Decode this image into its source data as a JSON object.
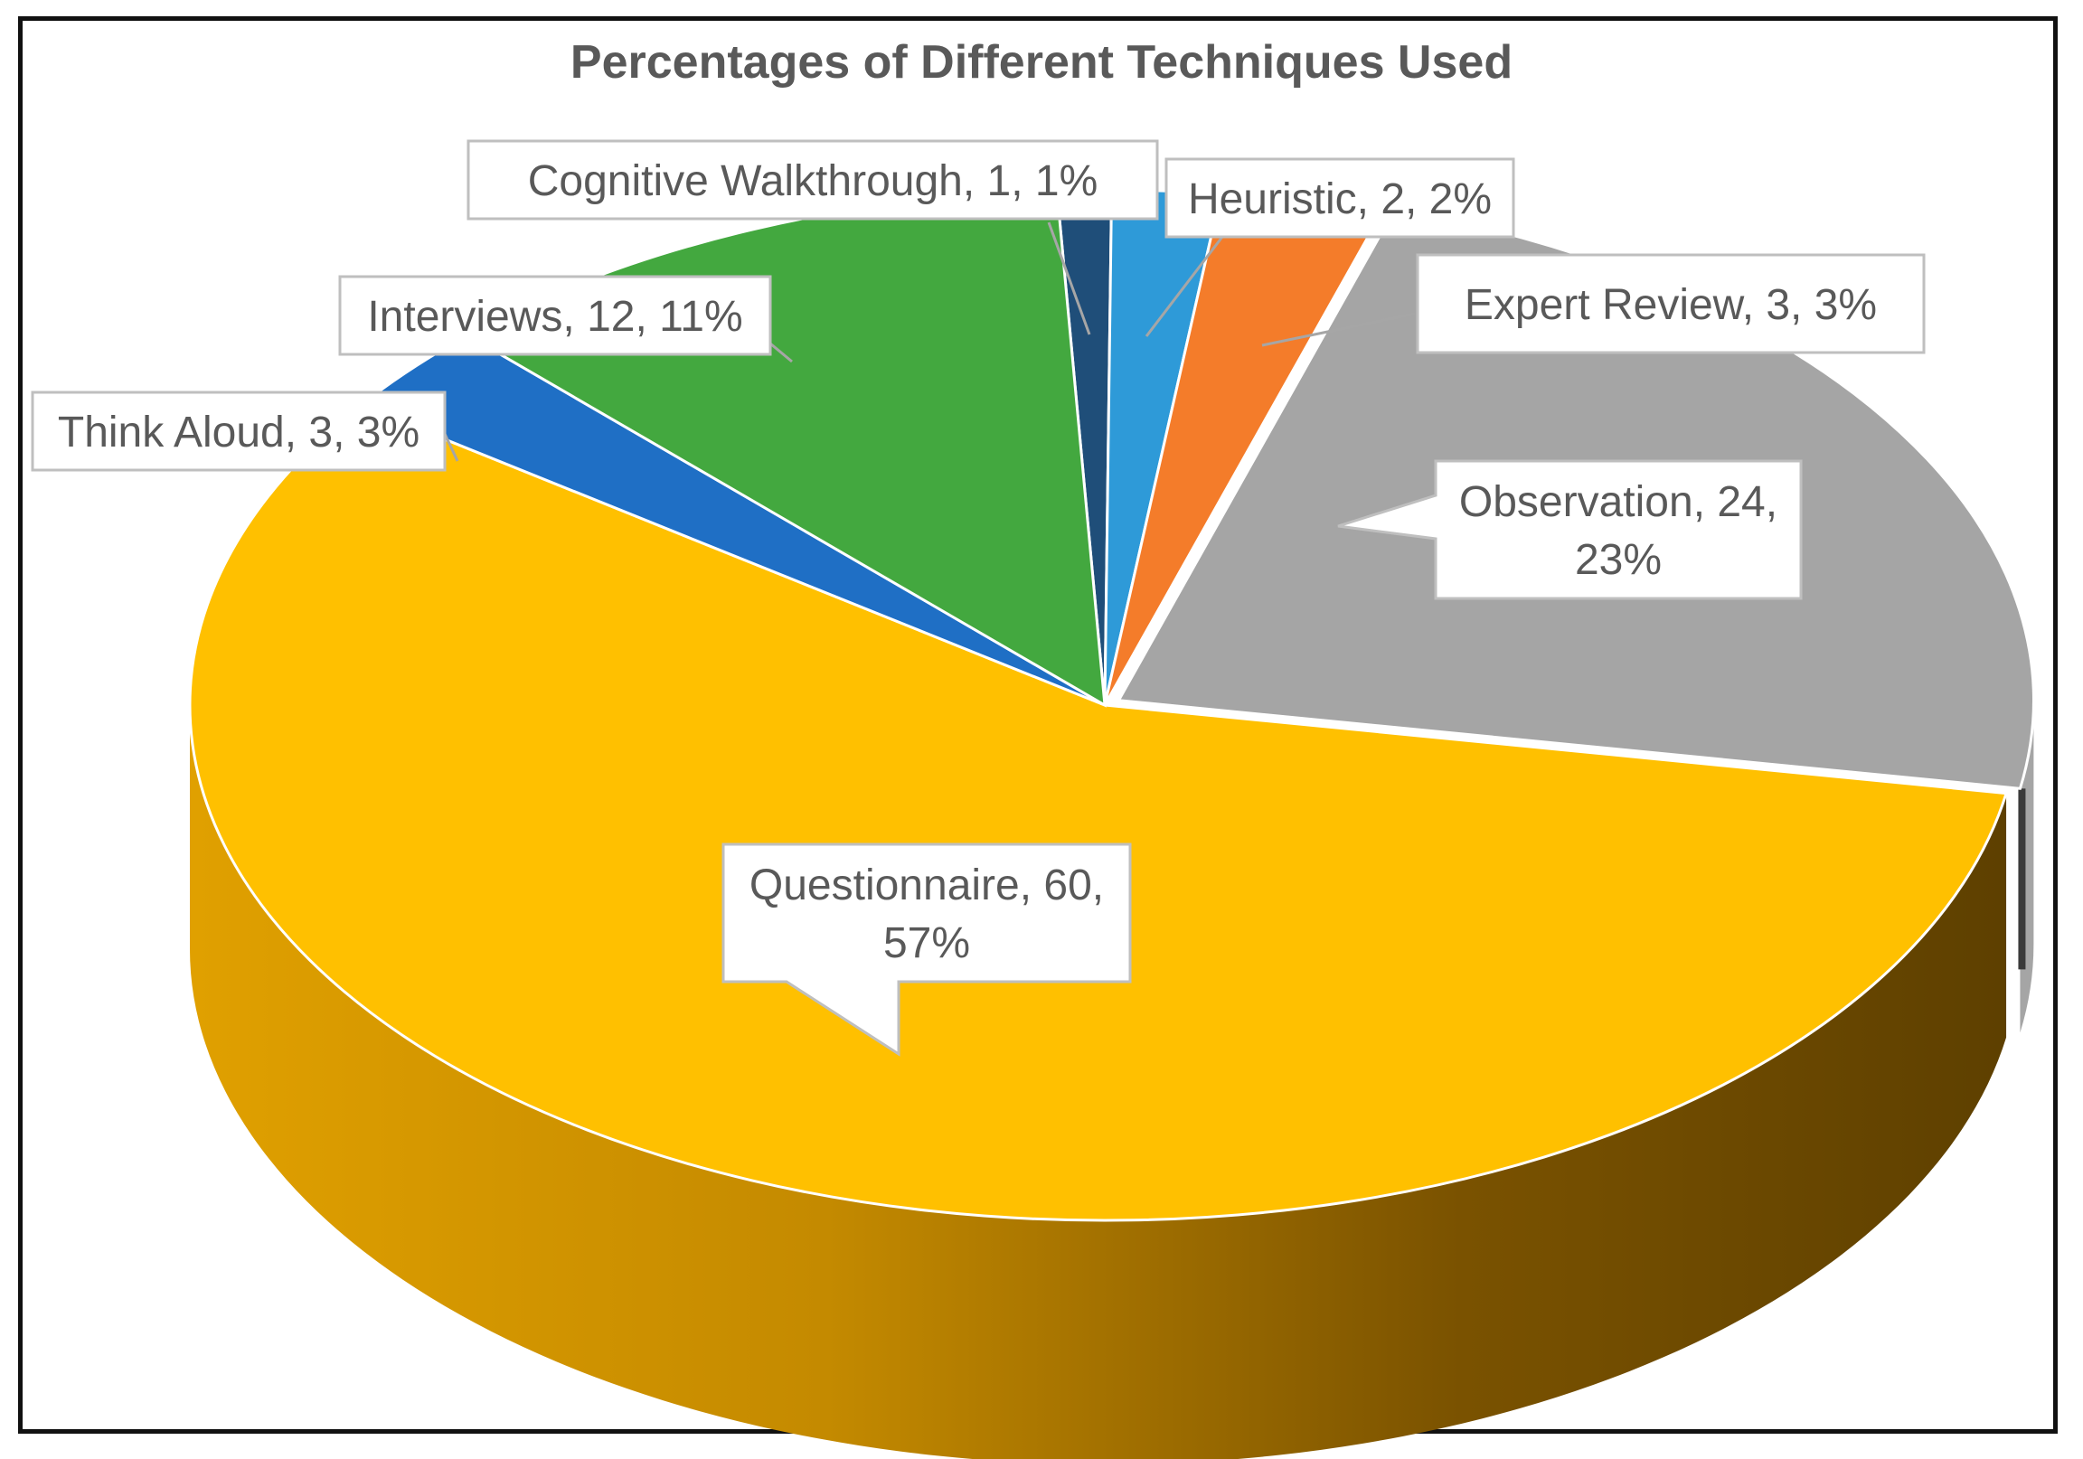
{
  "chart_data": {
    "type": "pie",
    "style": "3d-exploded",
    "title": "Percentages of Different Techniques Used",
    "slices": [
      {
        "name": "Cognitive Walkthrough",
        "value": 1,
        "percent": "1%",
        "color": "#1F4E79"
      },
      {
        "name": "Heuristic",
        "value": 2,
        "percent": "2%",
        "color": "#2E9AD8"
      },
      {
        "name": "Expert Review",
        "value": 3,
        "percent": "3%",
        "color": "#F47C2A"
      },
      {
        "name": "Observation",
        "value": 24,
        "percent": "23%",
        "color": "#A5A5A5"
      },
      {
        "name": "Questionnaire",
        "value": 60,
        "percent": "57%",
        "color": "#FFC000"
      },
      {
        "name": "Think Aloud",
        "value": 3,
        "percent": "3%",
        "color": "#1F6FC5"
      },
      {
        "name": "Interviews",
        "value": 12,
        "percent": "11%",
        "color": "#43A83F"
      }
    ],
    "labels": [
      {
        "slice": "Cognitive Walkthrough",
        "lines": [
          "Cognitive Walkthrough, 1, 1%"
        ]
      },
      {
        "slice": "Heuristic",
        "lines": [
          "Heuristic, 2, 2%"
        ]
      },
      {
        "slice": "Expert Review",
        "lines": [
          "Expert Review, 3, 3%"
        ]
      },
      {
        "slice": "Observation",
        "lines": [
          "Observation, 24,",
          "23%"
        ]
      },
      {
        "slice": "Questionnaire",
        "lines": [
          "Questionnaire, 60,",
          "57%"
        ]
      },
      {
        "slice": "Think Aloud",
        "lines": [
          "Think Aloud, 3, 3%"
        ]
      },
      {
        "slice": "Interviews",
        "lines": [
          "Interviews, 12, 11%"
        ]
      }
    ]
  }
}
